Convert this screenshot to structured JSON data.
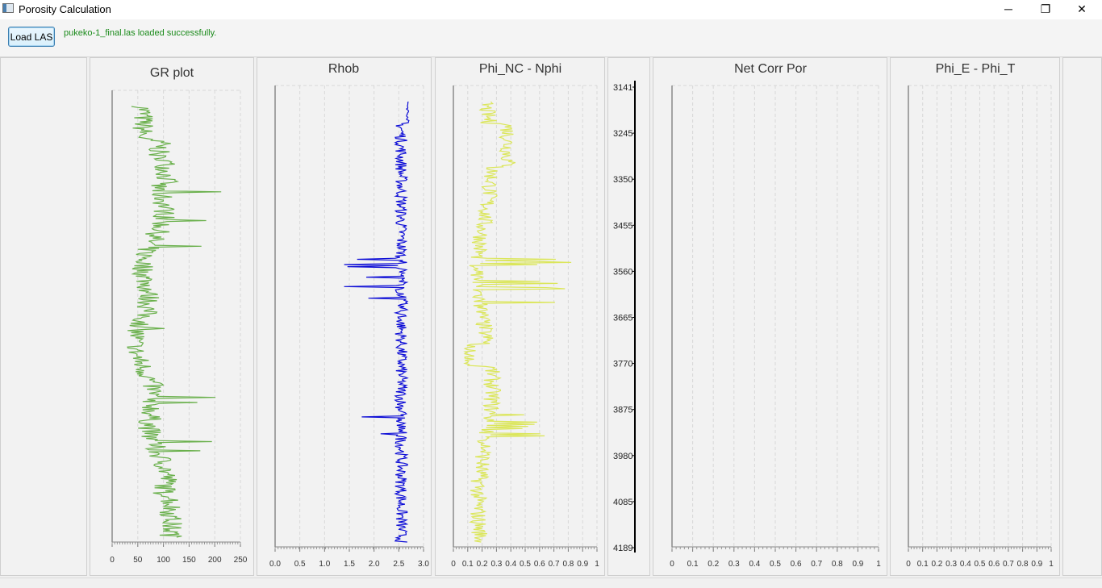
{
  "window": {
    "title": "Porosity Calculation",
    "minimize": "─",
    "maximize": "❐",
    "close": "✕"
  },
  "toolbar": {
    "load_button": "Load LAS",
    "status": "pukeko-1_final.las loaded successfully."
  },
  "colors": {
    "gr": "#6ab04c",
    "rhob": "#0d0dd6",
    "phi": "#dbe65a",
    "status": "#1a8a1a"
  },
  "depth_track": {
    "labels": [
      "3141",
      "3245",
      "3350",
      "3455",
      "3560",
      "3665",
      "3770",
      "3875",
      "3980",
      "4085",
      "4189"
    ]
  },
  "chart_data": [
    {
      "type": "line",
      "title": "GR plot",
      "xlim": [
        0,
        250
      ],
      "ticks": [
        "0",
        "50",
        "100",
        "150",
        "200",
        "250"
      ],
      "curve": "gr",
      "grid": true
    },
    {
      "type": "line",
      "title": "Rhob",
      "xlim": [
        0,
        3
      ],
      "ticks": [
        "0.0",
        "0.5",
        "1.0",
        "1.5",
        "2.0",
        "2.5",
        "3.0"
      ],
      "curve": "rhob",
      "grid": true
    },
    {
      "type": "line",
      "title": "Phi_NC - Nphi",
      "xlim": [
        0,
        1
      ],
      "ticks": [
        "0",
        "0.1",
        "0.2",
        "0.3",
        "0.4",
        "0.5",
        "0.6",
        "0.7",
        "0.8",
        "0.9",
        "1"
      ],
      "curve": "phi",
      "grid": true
    },
    {
      "type": "line",
      "title": "Net Corr Por",
      "xlim": [
        0,
        1
      ],
      "ticks": [
        "0",
        "0.1",
        "0.2",
        "0.3",
        "0.4",
        "0.5",
        "0.6",
        "0.7",
        "0.8",
        "0.9",
        "1"
      ],
      "curve": null,
      "grid": true
    },
    {
      "type": "line",
      "title": "Phi_E - Phi_T",
      "xlim": [
        0,
        1
      ],
      "ticks": [
        "0",
        "0.1",
        "0.2",
        "0.3",
        "0.4",
        "0.5",
        "0.6",
        "0.7",
        "0.8",
        "0.9",
        "1"
      ],
      "curve": null,
      "grid": true
    }
  ]
}
